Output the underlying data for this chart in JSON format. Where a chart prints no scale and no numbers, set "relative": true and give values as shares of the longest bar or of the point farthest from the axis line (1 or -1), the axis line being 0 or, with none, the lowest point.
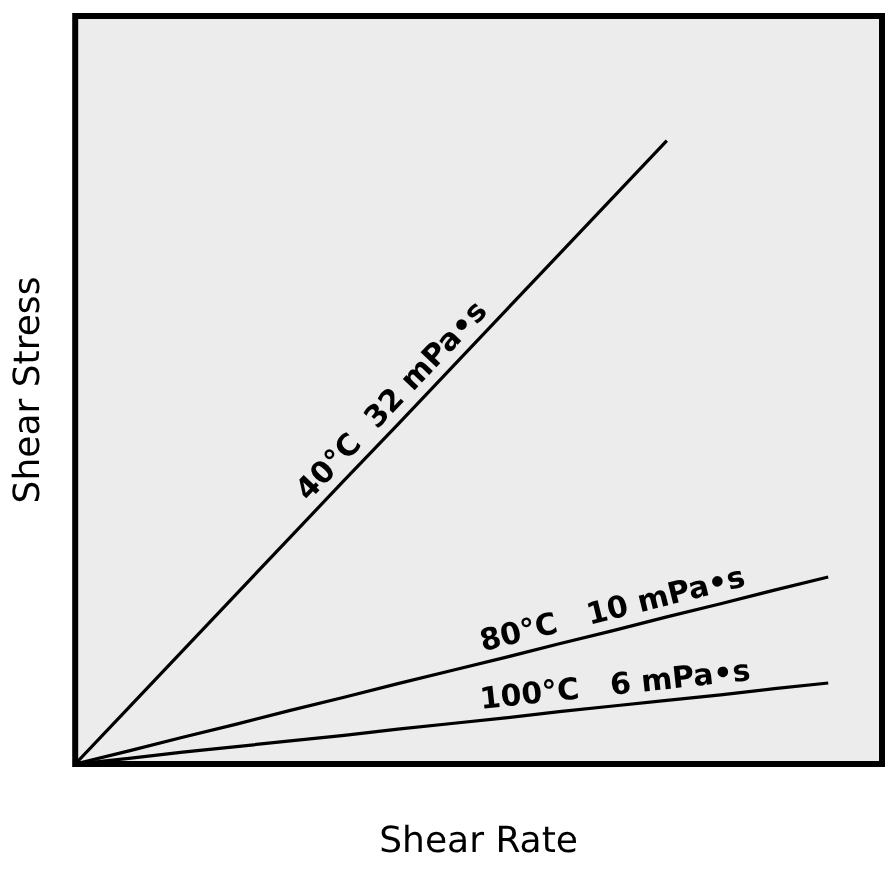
{
  "chart_data": {
    "type": "line",
    "xlabel": "Shear Rate",
    "ylabel": "Shear Stress",
    "relative": true,
    "legend": false,
    "marker": "none",
    "line_style": "solid",
    "categories": [
      null,
      null,
      null,
      null,
      null,
      null,
      null,
      null,
      null,
      null,
      null,
      null,
      null,
      null,
      null,
      null
    ],
    "series": [
      {
        "name": "40°C  32 mPa•s",
        "color": "#000000",
        "values": [
          0,
          0.091,
          0.182,
          0.273,
          0.364,
          0.455,
          0.545,
          0.636,
          0.727,
          0.818,
          0.909,
          1,
          null,
          null,
          null,
          null
        ]
      },
      {
        "name": "80°C   10 mPa•s",
        "color": "#000000",
        "values": [
          0,
          0.021,
          0.043,
          0.064,
          0.086,
          0.107,
          0.129,
          0.15,
          0.171,
          0.193,
          0.214,
          0.236,
          0.257,
          0.279,
          0.3,
          null
        ]
      },
      {
        "name": "100°C   6 mPa•s",
        "color": "#000000",
        "values": [
          0,
          0.009,
          0.019,
          0.028,
          0.037,
          0.046,
          0.056,
          0.065,
          0.074,
          0.084,
          0.093,
          0.102,
          0.111,
          0.121,
          0.13,
          null
        ]
      }
    ]
  }
}
